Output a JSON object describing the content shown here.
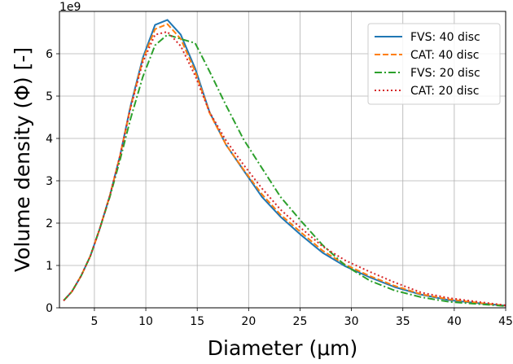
{
  "chart_data": {
    "type": "line",
    "title": "",
    "xlabel": "Diameter (μm)",
    "ylabel": "Volume density (Φ) [-]",
    "y_offset_label": "1e9",
    "y_scale": 1000000000,
    "xlim": [
      1.6,
      45
    ],
    "ylim": [
      0,
      7.0
    ],
    "x_ticks": [
      5,
      10,
      15,
      20,
      25,
      30,
      35,
      40,
      45
    ],
    "x_tick_labels": [
      "5",
      "10",
      "15",
      "20",
      "25",
      "30",
      "35",
      "40",
      "45"
    ],
    "y_ticks": [
      0,
      1,
      2,
      3,
      4,
      5,
      6
    ],
    "y_tick_labels": [
      "0",
      "1",
      "2",
      "3",
      "4",
      "5",
      "6"
    ],
    "grid": true,
    "legend_position": "top-right",
    "series": [
      {
        "name": "FVS: 40 disc",
        "color": "#1f77b4",
        "dash": "solid",
        "x": [
          2,
          2.8,
          3.7,
          4.6,
          5.5,
          6.5,
          7.5,
          8.5,
          9.7,
          10.9,
          12.1,
          13.4,
          14.8,
          16.2,
          17.8,
          19.5,
          21.3,
          23.1,
          25.1,
          27.2,
          29.4,
          31.8,
          34.2,
          36.8,
          39.5,
          42.3,
          45
        ],
        "y": [
          0.17,
          0.38,
          0.75,
          1.22,
          1.85,
          2.65,
          3.6,
          4.75,
          5.9,
          6.68,
          6.8,
          6.45,
          5.65,
          4.62,
          3.85,
          3.25,
          2.62,
          2.15,
          1.72,
          1.3,
          0.98,
          0.72,
          0.49,
          0.31,
          0.18,
          0.11,
          0.05
        ]
      },
      {
        "name": "CAT: 40 disc",
        "color": "#ff7f0e",
        "dash": "dashed",
        "x": [
          2,
          2.8,
          3.7,
          4.6,
          5.5,
          6.5,
          7.5,
          8.5,
          9.7,
          10.9,
          12.1,
          13.4,
          14.8,
          16.2,
          17.8,
          19.5,
          21.3,
          23.1,
          25.1,
          27.2,
          29.4,
          31.8,
          34.2,
          36.8,
          39.5,
          42.3,
          45
        ],
        "y": [
          0.17,
          0.38,
          0.75,
          1.22,
          1.85,
          2.65,
          3.6,
          4.72,
          5.85,
          6.58,
          6.7,
          6.35,
          5.58,
          4.6,
          3.85,
          3.27,
          2.68,
          2.2,
          1.78,
          1.35,
          1.02,
          0.75,
          0.52,
          0.32,
          0.2,
          0.12,
          0.05
        ]
      },
      {
        "name": "FVS: 20 disc",
        "color": "#2ca02c",
        "dash": "dashdot",
        "x": [
          2,
          2.8,
          3.7,
          4.6,
          5.5,
          6.5,
          7.5,
          8.5,
          9.7,
          10.9,
          12.1,
          13.4,
          14.8,
          16.2,
          17.8,
          19.5,
          21.3,
          23.1,
          25.1,
          27.2,
          29.4,
          31.8,
          34.2,
          36.8,
          39.5,
          42.3,
          45
        ],
        "y": [
          0.17,
          0.38,
          0.75,
          1.22,
          1.85,
          2.62,
          3.5,
          4.45,
          5.45,
          6.2,
          6.45,
          6.35,
          6.25,
          5.58,
          4.78,
          3.98,
          3.3,
          2.62,
          2.05,
          1.48,
          1.0,
          0.64,
          0.41,
          0.25,
          0.14,
          0.09,
          0.04
        ]
      },
      {
        "name": "CAT: 20 disc",
        "color": "#d62728",
        "dash": "dotted",
        "x": [
          2,
          2.8,
          3.7,
          4.6,
          5.5,
          6.5,
          7.5,
          8.5,
          9.7,
          10.9,
          12.1,
          13.4,
          14.8,
          16.2,
          17.8,
          19.5,
          21.3,
          23.1,
          25.1,
          27.2,
          29.4,
          31.8,
          34.2,
          36.8,
          39.5,
          42.3,
          45
        ],
        "y": [
          0.17,
          0.38,
          0.75,
          1.22,
          1.85,
          2.65,
          3.6,
          4.7,
          5.8,
          6.45,
          6.52,
          6.18,
          5.48,
          4.62,
          3.95,
          3.38,
          2.82,
          2.32,
          1.88,
          1.45,
          1.12,
          0.85,
          0.6,
          0.36,
          0.23,
          0.14,
          0.06
        ]
      }
    ]
  }
}
